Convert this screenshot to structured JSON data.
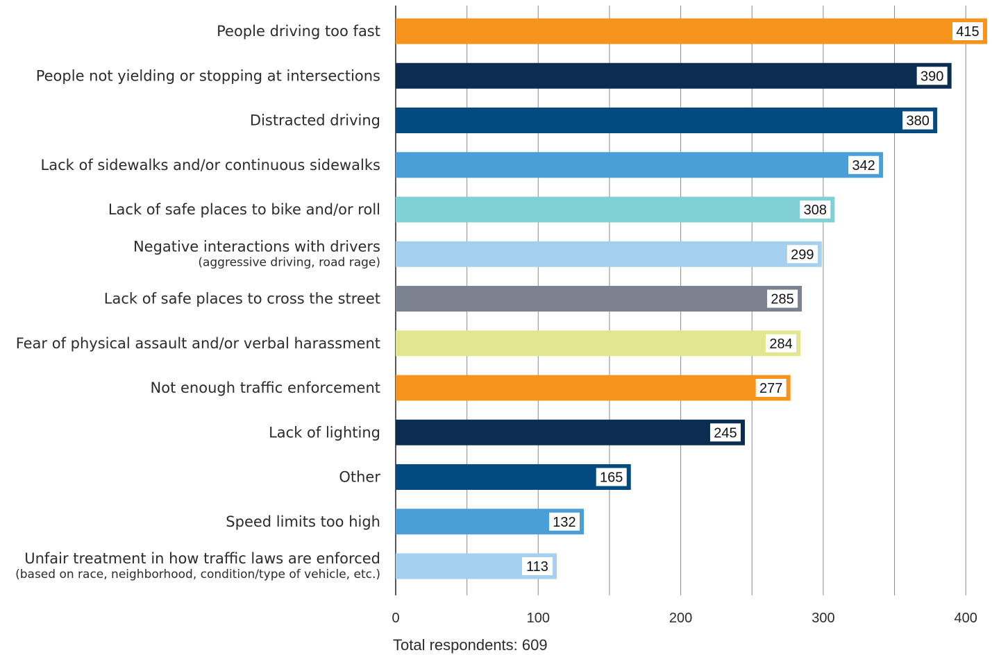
{
  "chart_data": {
    "type": "bar",
    "orientation": "horizontal",
    "categories": [
      "People driving too fast",
      "People not yielding or stopping at intersections",
      "Distracted driving",
      "Lack of sidewalks and/or continuous sidewalks",
      "Lack of safe places to bike and/or roll",
      "Negative interactions with drivers",
      "Lack of safe places to cross the street",
      "Fear of physical assault and/or verbal harassment",
      "Not enough traffic enforcement",
      "Lack of lighting",
      "Other",
      "Speed limits too high",
      "Unfair treatment in how traffic laws are enforced"
    ],
    "category_notes": [
      "",
      "",
      "",
      "",
      "",
      "(aggressive driving, road rage)",
      "",
      "",
      "",
      "",
      "",
      "",
      "(based on race, neighborhood, condition/type of vehicle, etc.)"
    ],
    "values": [
      415,
      390,
      380,
      342,
      308,
      299,
      285,
      284,
      277,
      245,
      165,
      132,
      113
    ],
    "value_labels": [
      "415",
      "390",
      "380",
      "342",
      "308",
      "299",
      "285",
      "284",
      "277",
      "245",
      "165",
      "132",
      "113"
    ],
    "bar_colors": [
      "#F7941D",
      "#0B2D52",
      "#034A80",
      "#4A9FD8",
      "#80D1D7",
      "#A5D0F0",
      "#7B8290",
      "#E2E690",
      "#F7941D",
      "#0B2D52",
      "#034A80",
      "#4A9FD8",
      "#A5D0F0"
    ],
    "xlim": [
      0,
      415
    ],
    "xticks": [
      0,
      100,
      200,
      300,
      400
    ],
    "xtick_labels": [
      "0",
      "100",
      "200",
      "300",
      "400"
    ],
    "gridlines": [
      0,
      50,
      100,
      150,
      200,
      250,
      300,
      350,
      400
    ],
    "grid": true,
    "legend": "none",
    "footnote": "Total respondents: 609"
  }
}
